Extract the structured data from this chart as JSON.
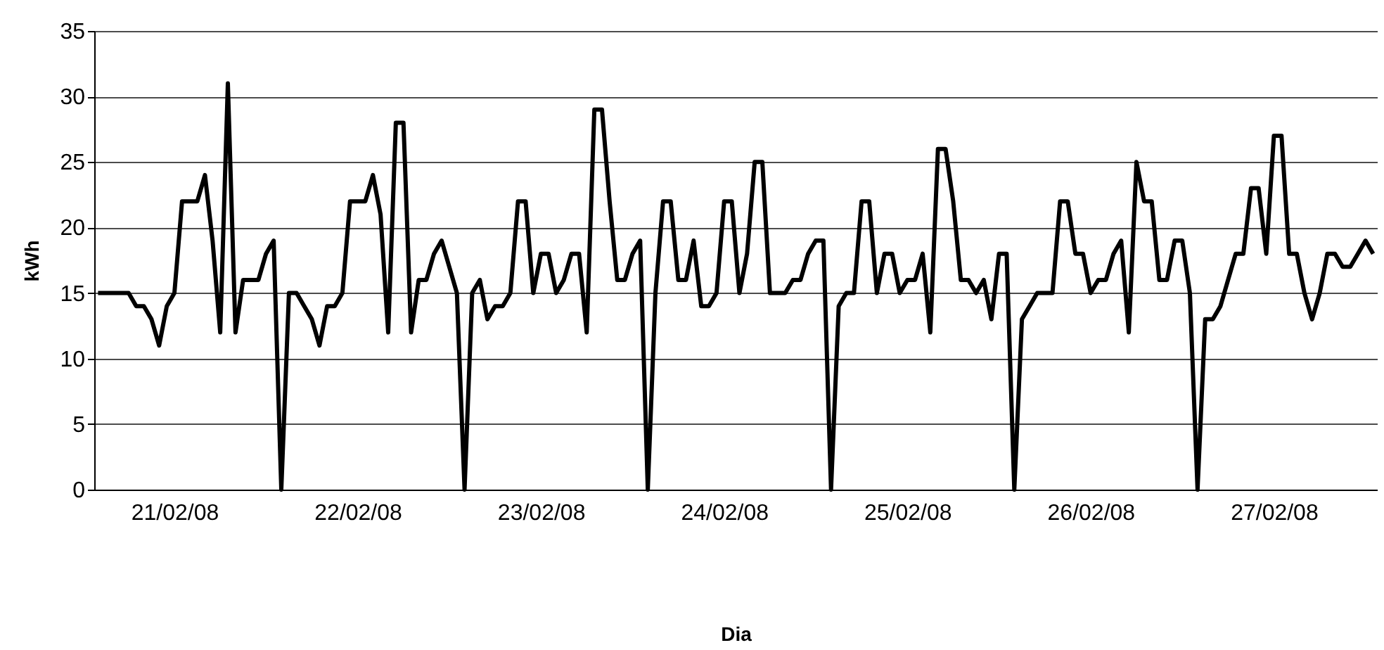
{
  "chart_data": {
    "type": "line",
    "xlabel": "Dia",
    "ylabel": "kWh",
    "ylim": [
      0,
      35
    ],
    "yticks": [
      0,
      5,
      10,
      15,
      20,
      25,
      30,
      35
    ],
    "grid": "y",
    "categories": [
      null,
      null,
      null,
      null,
      null,
      null,
      null,
      null,
      null,
      null,
      "21/02/08",
      null,
      null,
      null,
      null,
      null,
      null,
      null,
      null,
      null,
      null,
      null,
      null,
      null,
      null,
      null,
      null,
      null,
      null,
      null,
      null,
      null,
      null,
      null,
      "22/02/08",
      null,
      null,
      null,
      null,
      null,
      null,
      null,
      null,
      null,
      null,
      null,
      null,
      null,
      null,
      null,
      null,
      null,
      null,
      null,
      null,
      null,
      null,
      null,
      "23/02/08",
      null,
      null,
      null,
      null,
      null,
      null,
      null,
      null,
      null,
      null,
      null,
      null,
      null,
      null,
      null,
      null,
      null,
      null,
      null,
      null,
      null,
      null,
      null,
      "24/02/08",
      null,
      null,
      null,
      null,
      null,
      null,
      null,
      null,
      null,
      null,
      null,
      null,
      null,
      null,
      null,
      null,
      null,
      null,
      null,
      null,
      null,
      null,
      null,
      "25/02/08",
      null,
      null,
      null,
      null,
      null,
      null,
      null,
      null,
      null,
      null,
      null,
      null,
      null,
      null,
      null,
      null,
      null,
      null,
      null,
      null,
      null,
      null,
      null,
      "26/02/08",
      null,
      null,
      null,
      null,
      null,
      null,
      null,
      null,
      null,
      null,
      null,
      null,
      null,
      null,
      null,
      null,
      null,
      null,
      null,
      null,
      null,
      null,
      null,
      "27/02/08",
      null,
      null,
      null,
      null,
      null,
      null,
      null,
      null,
      null,
      null,
      null,
      null,
      null
    ],
    "series": [
      {
        "color": "#000000",
        "values": [
          15,
          15,
          15,
          15,
          15,
          14,
          14,
          13,
          11,
          14,
          15,
          22,
          22,
          22,
          24,
          19,
          12,
          31,
          12,
          16,
          16,
          16,
          18,
          19,
          0,
          15,
          15,
          14,
          13,
          11,
          14,
          14,
          15,
          22,
          22,
          22,
          24,
          21,
          12,
          28,
          28,
          12,
          16,
          16,
          18,
          19,
          17,
          15,
          0,
          15,
          16,
          13,
          14,
          14,
          15,
          22,
          22,
          15,
          18,
          18,
          15,
          16,
          18,
          18,
          12,
          29,
          29,
          22,
          16,
          16,
          18,
          19,
          0,
          15,
          22,
          22,
          16,
          16,
          19,
          14,
          14,
          15,
          22,
          22,
          15,
          18,
          25,
          25,
          15,
          15,
          15,
          16,
          16,
          18,
          19,
          19,
          0,
          14,
          15,
          15,
          22,
          22,
          15,
          18,
          18,
          15,
          16,
          16,
          18,
          12,
          26,
          26,
          22,
          16,
          16,
          15,
          16,
          13,
          18,
          18,
          0,
          13,
          14,
          15,
          15,
          15,
          22,
          22,
          18,
          18,
          15,
          16,
          16,
          18,
          19,
          12,
          25,
          22,
          22,
          16,
          16,
          19,
          19,
          15,
          0,
          13,
          13,
          14,
          16,
          18,
          18,
          23,
          23,
          18,
          27,
          27,
          18,
          18,
          15,
          13,
          15,
          18,
          18,
          17,
          17,
          18,
          19,
          18
        ]
      }
    ]
  }
}
